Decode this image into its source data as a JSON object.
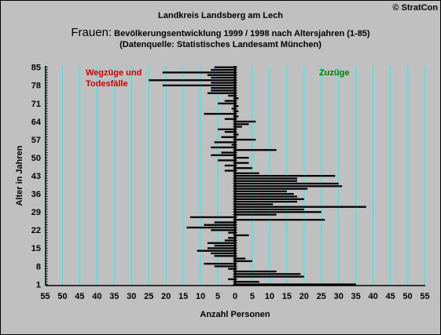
{
  "copyright": "© StratCon",
  "chart_data": {
    "type": "bar",
    "orientation": "horizontal-diverging",
    "title": "Landkreis Landsberg am Lech",
    "subtitle_prefix": "Frauen:",
    "subtitle": " Bevölkerungsentwicklung 1999 / 1998  nach Altersjahren (1-85)",
    "source": "(Datenquelle: Statistisches Landesamt München)",
    "xlabel": "Anzahl Personen",
    "ylabel": "Alter in Jahren",
    "xlim": [
      -55,
      55
    ],
    "ylim": [
      1,
      85
    ],
    "x_ticks": [
      -55,
      -50,
      -45,
      -40,
      -35,
      -30,
      -25,
      -20,
      -15,
      -10,
      -5,
      0,
      5,
      10,
      15,
      20,
      25,
      30,
      35,
      40,
      45,
      50,
      55
    ],
    "x_tick_labels": [
      "55",
      "50",
      "45",
      "40",
      "35",
      "30",
      "25",
      "20",
      "15",
      "10",
      "5",
      "0",
      "5",
      "10",
      "15",
      "20",
      "25",
      "30",
      "35",
      "40",
      "45",
      "50",
      "55"
    ],
    "y_ticks": [
      1,
      8,
      15,
      22,
      29,
      36,
      43,
      50,
      57,
      64,
      71,
      78,
      85
    ],
    "grid": "vertical",
    "grid_color": "#00ffff",
    "bar_color": "#000000",
    "left_annotation": "Wegzüge und\nTodesfälle",
    "left_annotation_color": "#cc0000",
    "right_annotation": "Zuzüge",
    "right_annotation_color": "#008000",
    "series": [
      {
        "values": [
          35,
          7,
          -2,
          20,
          19,
          12,
          -2,
          -6,
          -9,
          5,
          3,
          -6,
          -7,
          -11,
          -8,
          -6,
          -8,
          -3,
          -2,
          4,
          -2,
          -7,
          -14,
          -9,
          -6,
          26,
          -13,
          12,
          25,
          20,
          38,
          11,
          18,
          20,
          18,
          17,
          15,
          21,
          31,
          30,
          18,
          18,
          29,
          7,
          -3,
          5,
          -3,
          4,
          -5,
          4,
          -7,
          -4,
          12,
          -7,
          -1,
          -6,
          6,
          -4,
          1,
          -3,
          -5,
          2,
          4,
          6,
          -3,
          1,
          -9,
          1,
          -1,
          1,
          -5,
          -3,
          1,
          -2,
          -8,
          -7,
          -7,
          -21,
          -7,
          -25,
          -7,
          -8,
          -21,
          -7,
          -6
        ]
      }
    ]
  }
}
